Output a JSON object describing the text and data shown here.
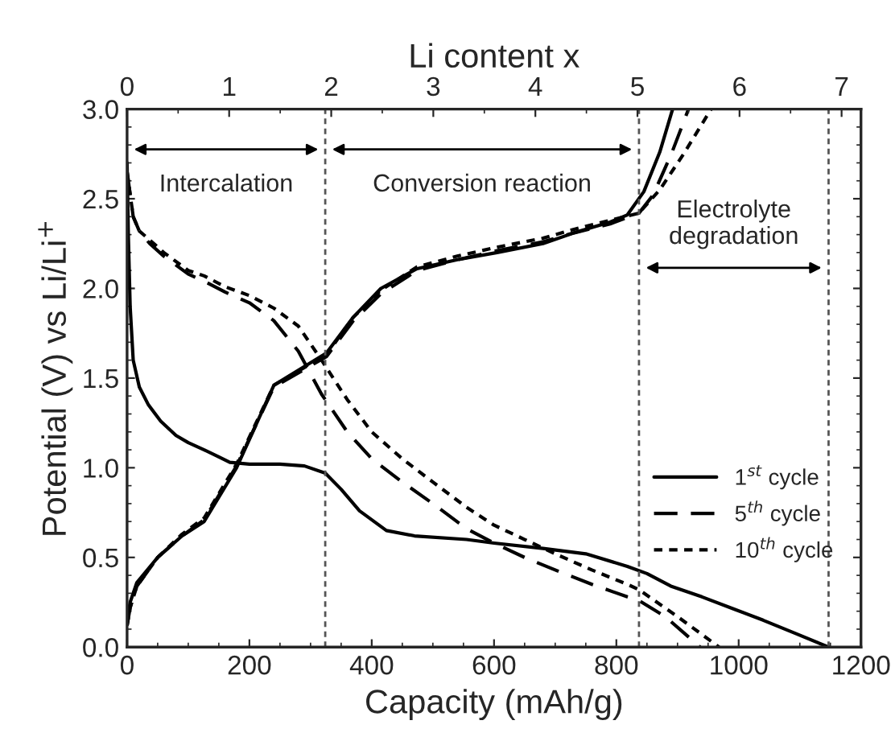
{
  "chart_data": {
    "type": "line",
    "xlabel": "Capacity (mAh/g)",
    "ylabel": "Potential (V) vs Li/Li$^{+}$",
    "x2label": "Li content x",
    "xlim": [
      0,
      1200
    ],
    "xticks": [
      0,
      200,
      400,
      600,
      800,
      1000,
      1200
    ],
    "ylim": [
      0,
      3.0
    ],
    "yticks": [
      {
        "value": 0,
        "label": "0.0"
      },
      {
        "value": 0.5,
        "label": "0.5"
      },
      {
        "value": 1.0,
        "label": "1.0"
      },
      {
        "value": 1.5,
        "label": "1.5"
      },
      {
        "value": 2.0,
        "label": "2.0"
      },
      {
        "value": 2.5,
        "label": "2.5"
      },
      {
        "value": 3.0,
        "label": "3.0"
      }
    ],
    "x2lim": [
      0,
      7.19
    ],
    "x2ticks": [
      0,
      1,
      2,
      3,
      4,
      5,
      6,
      7
    ],
    "grid": false,
    "legend": "lower right",
    "marker": "none",
    "series": [
      {
        "name": "1$^{st}$ cycle",
        "color": "#000000",
        "line_style": "solid",
        "x": [
          0,
          2,
          5,
          10,
          20,
          35,
          55,
          80,
          100,
          126,
          150,
          168,
          200,
          250,
          290,
          324,
          350,
          380,
          424,
          470,
          555,
          600,
          680,
          750,
          818,
          850,
          889,
          940,
          994,
          1040,
          1090,
          1147
        ],
        "values": [
          2.7,
          2.3,
          1.9,
          1.6,
          1.45,
          1.35,
          1.26,
          1.18,
          1.14,
          1.1,
          1.06,
          1.03,
          1.02,
          1.02,
          1.01,
          0.97,
          0.88,
          0.76,
          0.65,
          0.62,
          0.6,
          0.58,
          0.55,
          0.52,
          0.45,
          0.41,
          0.34,
          0.28,
          0.21,
          0.15,
          0.08,
          0.0
        ]
      },
      {
        "color": "#000000",
        "line_style": "solid",
        "x": [
          0,
          5,
          16,
          50,
          90,
          126,
          179,
          240,
          326,
          370,
          415,
          474,
          540,
          605,
          680,
          731,
          790,
          818,
          845,
          871,
          892
        ],
        "values": [
          0.15,
          0.25,
          0.36,
          0.5,
          0.62,
          0.7,
          1.0,
          1.46,
          1.64,
          1.84,
          2.0,
          2.11,
          2.16,
          2.2,
          2.25,
          2.31,
          2.37,
          2.41,
          2.54,
          2.76,
          3.0
        ]
      },
      {
        "name": "5$^{th}$ cycle",
        "color": "#000000",
        "line_style": "dashed",
        "x": [
          0,
          10,
          20,
          37,
          60,
          100,
          126,
          160,
          200,
          240,
          280,
          318,
          360,
          400,
          450,
          500,
          555,
          600,
          650,
          700,
          760,
          818,
          837,
          880,
          937
        ],
        "values": [
          2.65,
          2.4,
          2.32,
          2.25,
          2.18,
          2.08,
          2.04,
          1.98,
          1.92,
          1.82,
          1.65,
          1.41,
          1.2,
          1.05,
          0.92,
          0.8,
          0.66,
          0.58,
          0.5,
          0.43,
          0.35,
          0.28,
          0.26,
          0.17,
          0.0
        ]
      },
      {
        "color": "#000000",
        "line_style": "dashed",
        "x": [
          0,
          5,
          16,
          50,
          90,
          126,
          179,
          240,
          326,
          370,
          415,
          474,
          540,
          605,
          680,
          731,
          790,
          837,
          860,
          890,
          918
        ],
        "values": [
          0.12,
          0.22,
          0.34,
          0.5,
          0.62,
          0.71,
          1.01,
          1.45,
          1.62,
          1.82,
          1.97,
          2.1,
          2.16,
          2.21,
          2.26,
          2.31,
          2.36,
          2.42,
          2.52,
          2.75,
          3.0
        ]
      },
      {
        "name": "10$^{th}$ cycle",
        "color": "#000000",
        "line_style": "dotted",
        "x": [
          0,
          10,
          20,
          37,
          60,
          100,
          126,
          160,
          200,
          240,
          280,
          318,
          360,
          400,
          450,
          500,
          555,
          600,
          650,
          700,
          760,
          818,
          837,
          900,
          968
        ],
        "values": [
          2.65,
          2.4,
          2.32,
          2.27,
          2.2,
          2.1,
          2.07,
          2.01,
          1.96,
          1.89,
          1.79,
          1.6,
          1.38,
          1.2,
          1.05,
          0.92,
          0.78,
          0.68,
          0.6,
          0.52,
          0.43,
          0.35,
          0.32,
          0.17,
          0.0
        ]
      },
      {
        "color": "#000000",
        "line_style": "dotted",
        "x": [
          0,
          5,
          16,
          50,
          90,
          126,
          179,
          240,
          326,
          370,
          415,
          474,
          540,
          605,
          680,
          731,
          790,
          837,
          871,
          910,
          955
        ],
        "values": [
          0.12,
          0.22,
          0.34,
          0.5,
          0.63,
          0.72,
          1.02,
          1.46,
          1.63,
          1.84,
          1.99,
          2.12,
          2.18,
          2.23,
          2.28,
          2.33,
          2.38,
          2.42,
          2.55,
          2.75,
          3.0
        ]
      }
    ],
    "ref_lines": [
      {
        "axis": "x",
        "value": 324,
        "color": "#555555",
        "line_style": "dotted"
      },
      {
        "axis": "x",
        "value": 837,
        "color": "#555555",
        "line_style": "dotted"
      },
      {
        "axis": "x",
        "value": 1147,
        "color": "#555555",
        "line_style": "dotted"
      }
    ],
    "annotations": [
      "Intercalation",
      "Conversion reaction",
      "Electrolyte\ndegradation"
    ]
  }
}
